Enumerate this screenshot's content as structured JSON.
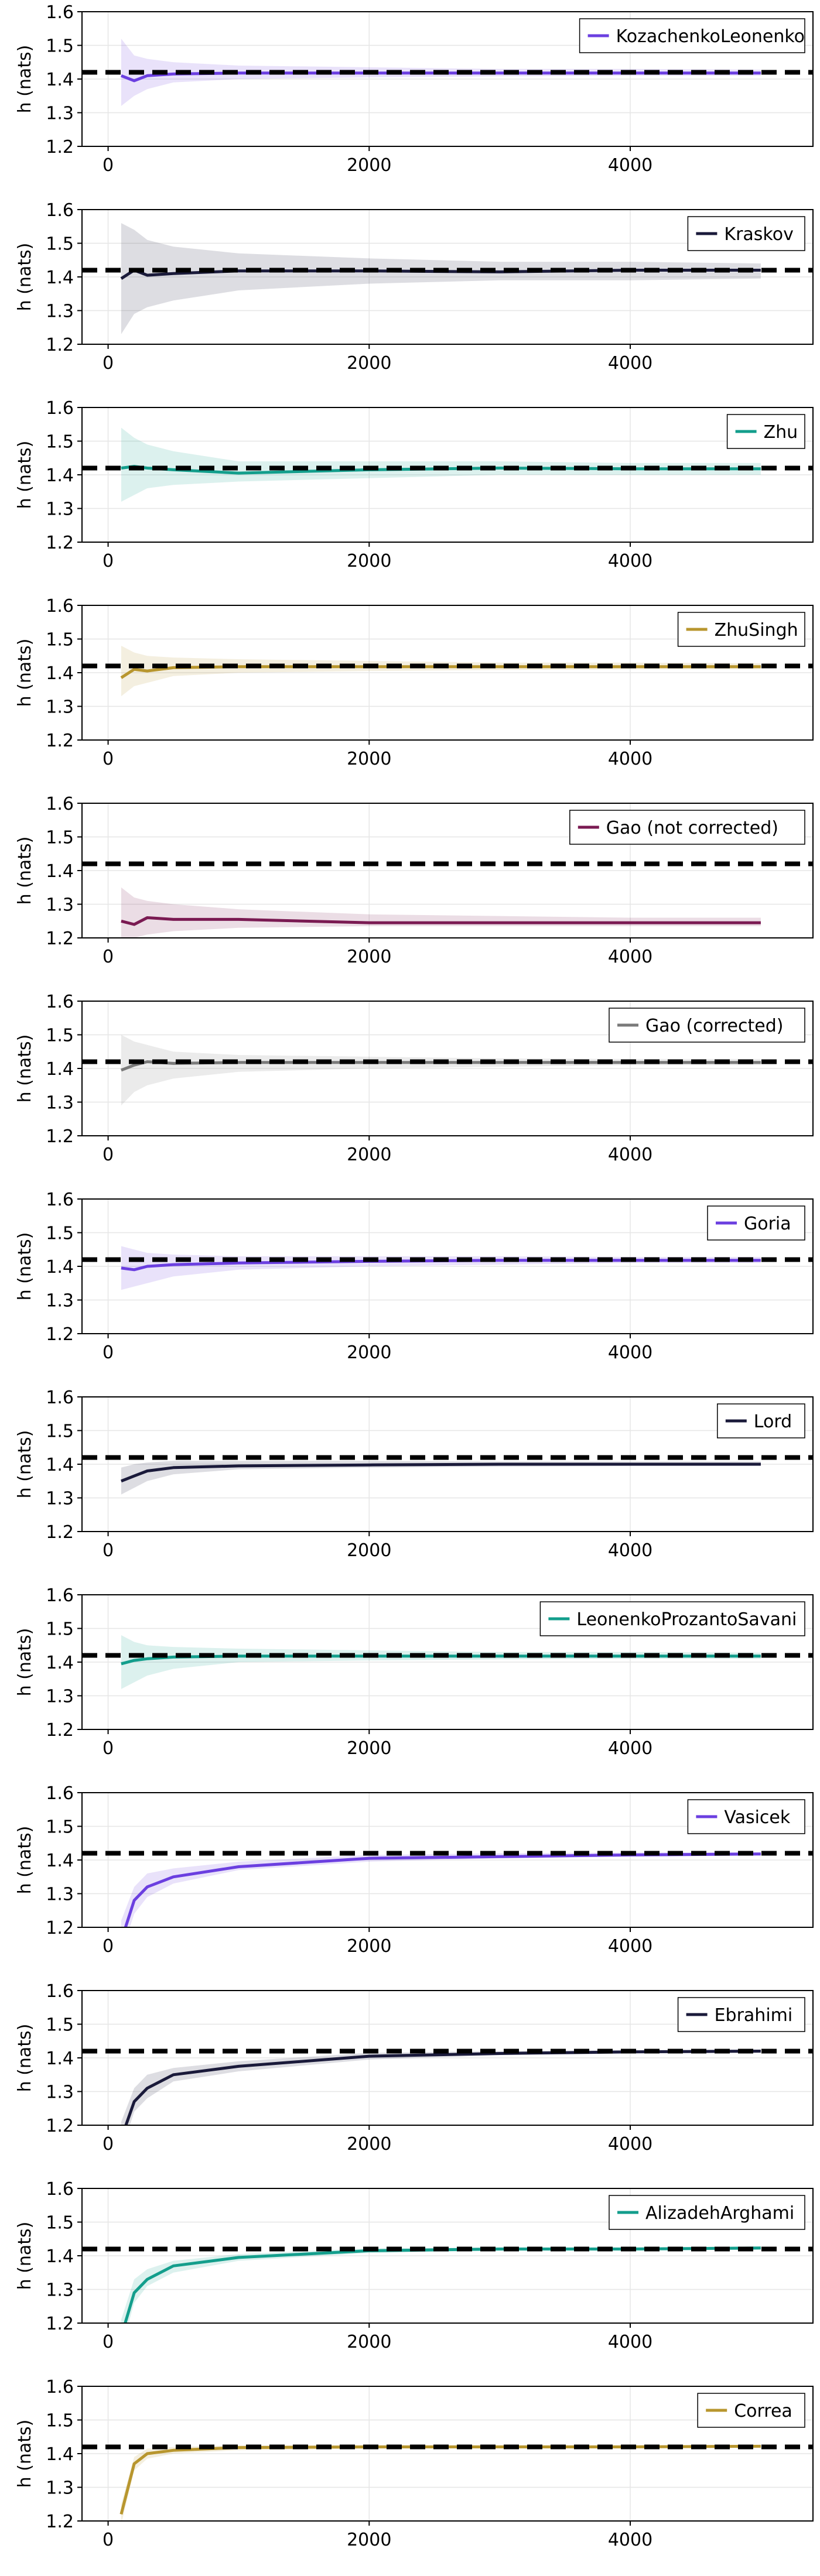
{
  "true_value": 1.42,
  "chart_data": [
    {
      "type": "line",
      "ylabel": "h (nats)",
      "ylim": [
        1.2,
        1.6
      ],
      "xlim": [
        -200,
        5400
      ],
      "xticks": [
        0,
        2000,
        4000
      ],
      "yticks": [
        1.2,
        1.3,
        1.4,
        1.5,
        1.6
      ],
      "grid": true,
      "legend": "top-right",
      "series": [
        {
          "name": "KozachenkoLeonenko",
          "color": "#6b3fe0",
          "x": [
            100,
            200,
            300,
            500,
            1000,
            2000,
            3000,
            4000,
            5000
          ],
          "y": [
            1.41,
            1.395,
            1.41,
            1.415,
            1.418,
            1.418,
            1.418,
            1.418,
            1.418
          ],
          "lower": [
            1.32,
            1.35,
            1.37,
            1.39,
            1.4,
            1.405,
            1.408,
            1.41,
            1.41
          ],
          "upper": [
            1.52,
            1.47,
            1.46,
            1.45,
            1.44,
            1.435,
            1.43,
            1.43,
            1.428
          ]
        }
      ]
    },
    {
      "type": "line",
      "ylabel": "h (nats)",
      "ylim": [
        1.2,
        1.6
      ],
      "xlim": [
        -200,
        5400
      ],
      "xticks": [
        0,
        2000,
        4000
      ],
      "yticks": [
        1.2,
        1.3,
        1.4,
        1.5,
        1.6
      ],
      "grid": true,
      "legend": "top-right",
      "series": [
        {
          "name": "Kraskov",
          "color": "#1a1a3a",
          "x": [
            100,
            200,
            300,
            500,
            1000,
            2000,
            3000,
            4000,
            5000
          ],
          "y": [
            1.395,
            1.42,
            1.405,
            1.41,
            1.418,
            1.418,
            1.415,
            1.42,
            1.42
          ],
          "lower": [
            1.23,
            1.29,
            1.31,
            1.33,
            1.36,
            1.38,
            1.39,
            1.39,
            1.395
          ],
          "upper": [
            1.56,
            1.54,
            1.51,
            1.49,
            1.47,
            1.455,
            1.445,
            1.445,
            1.44
          ]
        }
      ]
    },
    {
      "type": "line",
      "ylabel": "h (nats)",
      "ylim": [
        1.2,
        1.6
      ],
      "xlim": [
        -200,
        5400
      ],
      "xticks": [
        0,
        2000,
        4000
      ],
      "yticks": [
        1.2,
        1.3,
        1.4,
        1.5,
        1.6
      ],
      "grid": true,
      "legend": "top-right",
      "series": [
        {
          "name": "Zhu",
          "color": "#139e8c",
          "x": [
            100,
            200,
            300,
            500,
            1000,
            2000,
            3000,
            4000,
            5000
          ],
          "y": [
            1.42,
            1.425,
            1.42,
            1.415,
            1.405,
            1.415,
            1.42,
            1.418,
            1.418
          ],
          "lower": [
            1.32,
            1.34,
            1.36,
            1.37,
            1.38,
            1.39,
            1.4,
            1.4,
            1.4
          ],
          "upper": [
            1.54,
            1.51,
            1.49,
            1.47,
            1.44,
            1.44,
            1.44,
            1.435,
            1.435
          ]
        }
      ]
    },
    {
      "type": "line",
      "ylabel": "h (nats)",
      "ylim": [
        1.2,
        1.6
      ],
      "xlim": [
        -200,
        5400
      ],
      "xticks": [
        0,
        2000,
        4000
      ],
      "yticks": [
        1.2,
        1.3,
        1.4,
        1.5,
        1.6
      ],
      "grid": true,
      "legend": "top-right",
      "series": [
        {
          "name": "ZhuSingh",
          "color": "#b8962e",
          "x": [
            100,
            200,
            300,
            500,
            1000,
            2000,
            3000,
            4000,
            5000
          ],
          "y": [
            1.385,
            1.41,
            1.405,
            1.415,
            1.418,
            1.418,
            1.418,
            1.418,
            1.418
          ],
          "lower": [
            1.33,
            1.36,
            1.37,
            1.39,
            1.4,
            1.405,
            1.408,
            1.41,
            1.41
          ],
          "upper": [
            1.48,
            1.46,
            1.45,
            1.445,
            1.44,
            1.435,
            1.43,
            1.43,
            1.428
          ]
        }
      ]
    },
    {
      "type": "line",
      "ylabel": "h (nats)",
      "ylim": [
        1.2,
        1.6
      ],
      "xlim": [
        -200,
        5400
      ],
      "xticks": [
        0,
        2000,
        4000
      ],
      "yticks": [
        1.2,
        1.3,
        1.4,
        1.5,
        1.6
      ],
      "grid": true,
      "legend": "top-right",
      "series": [
        {
          "name": "Gao (not corrected)",
          "color": "#7a1a52",
          "x": [
            100,
            200,
            300,
            500,
            1000,
            2000,
            3000,
            4000,
            5000
          ],
          "y": [
            1.25,
            1.24,
            1.26,
            1.255,
            1.255,
            1.245,
            1.245,
            1.245,
            1.245
          ],
          "lower": [
            1.2,
            1.2,
            1.21,
            1.22,
            1.23,
            1.235,
            1.235,
            1.235,
            1.235
          ],
          "upper": [
            1.35,
            1.32,
            1.31,
            1.3,
            1.285,
            1.27,
            1.265,
            1.26,
            1.26
          ]
        }
      ]
    },
    {
      "type": "line",
      "ylabel": "h (nats)",
      "ylim": [
        1.2,
        1.6
      ],
      "xlim": [
        -200,
        5400
      ],
      "xticks": [
        0,
        2000,
        4000
      ],
      "yticks": [
        1.2,
        1.3,
        1.4,
        1.5,
        1.6
      ],
      "grid": true,
      "legend": "top-right",
      "series": [
        {
          "name": "Gao (corrected)",
          "color": "#7a7a7a",
          "x": [
            100,
            200,
            300,
            500,
            1000,
            2000,
            3000,
            4000,
            5000
          ],
          "y": [
            1.395,
            1.41,
            1.42,
            1.415,
            1.418,
            1.418,
            1.418,
            1.418,
            1.418
          ],
          "lower": [
            1.29,
            1.33,
            1.35,
            1.37,
            1.39,
            1.4,
            1.405,
            1.41,
            1.41
          ],
          "upper": [
            1.5,
            1.48,
            1.47,
            1.45,
            1.44,
            1.435,
            1.43,
            1.428,
            1.428
          ]
        }
      ]
    },
    {
      "type": "line",
      "ylabel": "h (nats)",
      "ylim": [
        1.2,
        1.6
      ],
      "xlim": [
        -200,
        5400
      ],
      "xticks": [
        0,
        2000,
        4000
      ],
      "yticks": [
        1.2,
        1.3,
        1.4,
        1.5,
        1.6
      ],
      "grid": true,
      "legend": "top-right",
      "series": [
        {
          "name": "Goria",
          "color": "#6b3fe0",
          "x": [
            100,
            200,
            300,
            500,
            1000,
            2000,
            3000,
            4000,
            5000
          ],
          "y": [
            1.395,
            1.39,
            1.4,
            1.405,
            1.41,
            1.415,
            1.418,
            1.418,
            1.418
          ],
          "lower": [
            1.33,
            1.34,
            1.35,
            1.37,
            1.39,
            1.4,
            1.405,
            1.41,
            1.41
          ],
          "upper": [
            1.46,
            1.45,
            1.44,
            1.435,
            1.43,
            1.43,
            1.43,
            1.428,
            1.428
          ]
        }
      ]
    },
    {
      "type": "line",
      "ylabel": "h (nats)",
      "ylim": [
        1.2,
        1.6
      ],
      "xlim": [
        -200,
        5400
      ],
      "xticks": [
        0,
        2000,
        4000
      ],
      "yticks": [
        1.2,
        1.3,
        1.4,
        1.5,
        1.6
      ],
      "grid": true,
      "legend": "top-right",
      "series": [
        {
          "name": "Lord",
          "color": "#1a1a3a",
          "x": [
            100,
            200,
            300,
            500,
            1000,
            2000,
            3000,
            4000,
            5000
          ],
          "y": [
            1.35,
            1.365,
            1.38,
            1.39,
            1.395,
            1.398,
            1.4,
            1.4,
            1.4
          ],
          "lower": [
            1.31,
            1.33,
            1.35,
            1.37,
            1.385,
            1.39,
            1.393,
            1.395,
            1.395
          ],
          "upper": [
            1.39,
            1.4,
            1.405,
            1.41,
            1.41,
            1.41,
            1.408,
            1.408,
            1.408
          ]
        }
      ]
    },
    {
      "type": "line",
      "ylabel": "h (nats)",
      "ylim": [
        1.2,
        1.6
      ],
      "xlim": [
        -200,
        5400
      ],
      "xticks": [
        0,
        2000,
        4000
      ],
      "yticks": [
        1.2,
        1.3,
        1.4,
        1.5,
        1.6
      ],
      "grid": true,
      "legend": "top-right",
      "series": [
        {
          "name": "LeonenkoProzantoSavani",
          "color": "#139e8c",
          "x": [
            100,
            200,
            300,
            500,
            1000,
            2000,
            3000,
            4000,
            5000
          ],
          "y": [
            1.395,
            1.405,
            1.41,
            1.415,
            1.418,
            1.418,
            1.418,
            1.418,
            1.418
          ],
          "lower": [
            1.32,
            1.34,
            1.36,
            1.38,
            1.4,
            1.405,
            1.408,
            1.41,
            1.41
          ],
          "upper": [
            1.48,
            1.46,
            1.45,
            1.445,
            1.44,
            1.435,
            1.43,
            1.43,
            1.428
          ]
        }
      ]
    },
    {
      "type": "line",
      "ylabel": "h (nats)",
      "ylim": [
        1.2,
        1.6
      ],
      "xlim": [
        -200,
        5400
      ],
      "xticks": [
        0,
        2000,
        4000
      ],
      "yticks": [
        1.2,
        1.3,
        1.4,
        1.5,
        1.6
      ],
      "grid": true,
      "legend": "top-right",
      "series": [
        {
          "name": "Vasicek",
          "color": "#6b3fe0",
          "x": [
            100,
            200,
            300,
            500,
            1000,
            2000,
            3000,
            4000,
            5000
          ],
          "y": [
            1.16,
            1.28,
            1.32,
            1.35,
            1.38,
            1.405,
            1.41,
            1.415,
            1.418
          ],
          "lower": [
            1.12,
            1.24,
            1.29,
            1.33,
            1.37,
            1.395,
            1.405,
            1.41,
            1.413
          ],
          "upper": [
            1.22,
            1.32,
            1.36,
            1.375,
            1.395,
            1.415,
            1.42,
            1.422,
            1.423
          ]
        }
      ]
    },
    {
      "type": "line",
      "ylabel": "h (nats)",
      "ylim": [
        1.2,
        1.6
      ],
      "xlim": [
        -200,
        5400
      ],
      "xticks": [
        0,
        2000,
        4000
      ],
      "yticks": [
        1.2,
        1.3,
        1.4,
        1.5,
        1.6
      ],
      "grid": true,
      "legend": "top-right",
      "series": [
        {
          "name": "Ebrahimi",
          "color": "#1a1a3a",
          "x": [
            100,
            200,
            300,
            500,
            1000,
            2000,
            3000,
            4000,
            5000
          ],
          "y": [
            1.16,
            1.27,
            1.31,
            1.35,
            1.375,
            1.405,
            1.413,
            1.418,
            1.42
          ],
          "lower": [
            1.12,
            1.24,
            1.28,
            1.33,
            1.36,
            1.395,
            1.408,
            1.413,
            1.415
          ],
          "upper": [
            1.21,
            1.31,
            1.35,
            1.37,
            1.39,
            1.415,
            1.42,
            1.423,
            1.425
          ]
        }
      ]
    },
    {
      "type": "line",
      "ylabel": "h (nats)",
      "ylim": [
        1.2,
        1.6
      ],
      "xlim": [
        -200,
        5400
      ],
      "xticks": [
        0,
        2000,
        4000
      ],
      "yticks": [
        1.2,
        1.3,
        1.4,
        1.5,
        1.6
      ],
      "grid": true,
      "legend": "top-right",
      "series": [
        {
          "name": "AlizadehArghami",
          "color": "#139e8c",
          "x": [
            100,
            200,
            300,
            500,
            1000,
            2000,
            3000,
            4000,
            5000
          ],
          "y": [
            1.16,
            1.29,
            1.33,
            1.37,
            1.395,
            1.415,
            1.42,
            1.42,
            1.423
          ],
          "lower": [
            1.12,
            1.26,
            1.31,
            1.35,
            1.385,
            1.408,
            1.415,
            1.416,
            1.418
          ],
          "upper": [
            1.21,
            1.33,
            1.36,
            1.385,
            1.405,
            1.422,
            1.425,
            1.425,
            1.428
          ]
        }
      ]
    },
    {
      "type": "line",
      "ylabel": "h (nats)",
      "ylim": [
        1.2,
        1.6
      ],
      "xlim": [
        -200,
        5400
      ],
      "xticks": [
        0,
        2000,
        4000
      ],
      "yticks": [
        1.2,
        1.3,
        1.4,
        1.5,
        1.6
      ],
      "grid": true,
      "legend": "top-right",
      "series": [
        {
          "name": "Correa",
          "color": "#b8962e",
          "x": [
            100,
            200,
            300,
            500,
            1000,
            2000,
            3000,
            4000,
            5000
          ],
          "y": [
            1.22,
            1.37,
            1.4,
            1.41,
            1.418,
            1.42,
            1.42,
            1.42,
            1.422
          ],
          "lower": [
            1.19,
            1.35,
            1.385,
            1.4,
            1.41,
            1.415,
            1.416,
            1.417,
            1.418
          ],
          "upper": [
            1.25,
            1.39,
            1.415,
            1.42,
            1.425,
            1.425,
            1.425,
            1.425,
            1.426
          ]
        }
      ]
    }
  ]
}
